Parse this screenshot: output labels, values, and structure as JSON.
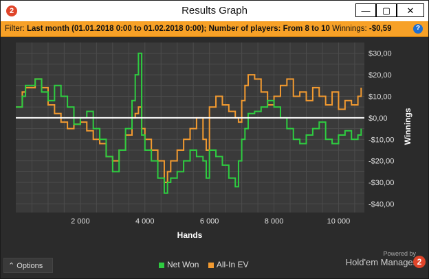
{
  "window": {
    "title": "Results Graph",
    "minimize": "—",
    "maximize": "▢",
    "close": "✕",
    "app_badge": "2"
  },
  "filter": {
    "label": "Filter:",
    "text": "Last month (01.01.2018 0:00 to 01.02.2018 0:00); Number of players: From 8 to 10",
    "winnings_label": "Winnings:",
    "winnings_value": "-$0,59",
    "help": "?"
  },
  "bottom": {
    "options_label": "Options",
    "options_arrow": "⌃",
    "powered_by": "Powered by",
    "brand_name": "Hold'em Manager",
    "brand_badge": "2"
  },
  "colors": {
    "net_won": "#2ecc40",
    "all_in_ev": "#f29a30",
    "zero_line": "#ffffff",
    "filter_bar": "#f7a127",
    "plot_bg": "#3a3a3a",
    "grid": "#4c4c4c"
  },
  "chart_data": {
    "type": "line",
    "xlabel": "Hands",
    "ylabel": "Winnings",
    "xlim": [
      0,
      10800
    ],
    "ylim": [
      -44,
      35
    ],
    "x_ticks": [
      2000,
      4000,
      6000,
      8000,
      10000
    ],
    "x_tick_labels": [
      "2 000",
      "4 000",
      "6 000",
      "8 000",
      "10 000"
    ],
    "y_ticks": [
      30,
      20,
      10,
      0,
      -10,
      -20,
      -30,
      -40
    ],
    "y_tick_labels": [
      "$30,00",
      "$20,00",
      "$10,00",
      "$0,00",
      "-$10,00",
      "-$20,00",
      "-$30,00",
      "-$40,00"
    ],
    "grid": true,
    "zero_line": 0,
    "x": [
      0,
      200,
      300,
      600,
      800,
      1000,
      1200,
      1400,
      1600,
      1800,
      2000,
      2200,
      2400,
      2600,
      2800,
      3000,
      3200,
      3400,
      3600,
      3700,
      3800,
      3900,
      4000,
      4200,
      4400,
      4600,
      4700,
      4800,
      5000,
      5200,
      5400,
      5600,
      5800,
      5900,
      6000,
      6200,
      6400,
      6600,
      6800,
      6900,
      7000,
      7100,
      7200,
      7400,
      7600,
      7800,
      8000,
      8200,
      8400,
      8600,
      8800,
      9000,
      9200,
      9400,
      9600,
      9800,
      10000,
      10200,
      10400,
      10600,
      10700
    ],
    "series": [
      {
        "name": "Net Won",
        "values": [
          5,
          10,
          15,
          18,
          12,
          8,
          15,
          10,
          5,
          -3,
          0,
          3,
          -5,
          -10,
          -18,
          -25,
          -15,
          -5,
          8,
          20,
          30,
          -8,
          -15,
          -20,
          -28,
          -35,
          -30,
          -28,
          -25,
          -20,
          -15,
          -18,
          -20,
          -28,
          -15,
          -18,
          -22,
          -28,
          -32,
          -20,
          -10,
          -5,
          2,
          3,
          5,
          8,
          5,
          0,
          -5,
          -10,
          -12,
          -8,
          -5,
          -2,
          -10,
          -12,
          -8,
          -6,
          -10,
          -8,
          -5
        ]
      },
      {
        "name": "All-In EV",
        "values": [
          5,
          12,
          14,
          18,
          14,
          6,
          2,
          -2,
          -5,
          -3,
          -2,
          -6,
          -10,
          -12,
          -18,
          -20,
          -15,
          -8,
          0,
          2,
          5,
          -5,
          -10,
          -15,
          -20,
          -30,
          -25,
          -20,
          -15,
          -10,
          -5,
          0,
          -10,
          -15,
          5,
          10,
          6,
          3,
          0,
          -2,
          8,
          15,
          20,
          18,
          12,
          6,
          10,
          15,
          18,
          10,
          12,
          8,
          14,
          10,
          6,
          12,
          4,
          8,
          6,
          10,
          14
        ]
      }
    ]
  }
}
